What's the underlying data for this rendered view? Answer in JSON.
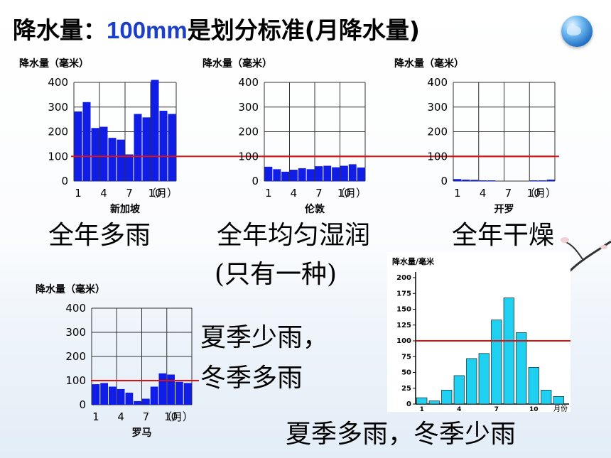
{
  "title": {
    "prefix": "降水量：",
    "highlight": "100mm",
    "suffix": "是划分标准(月降水量)"
  },
  "captions": {
    "singapore": "全年多雨",
    "london": "全年均匀湿润",
    "cairo": "全年干燥",
    "only_one": "(只有一种)",
    "rome_line1": "夏季少雨，",
    "rome_line2": "冬季多雨",
    "last": "夏季多雨，冬季少雨"
  },
  "colors": {
    "bar": "#0f1de6",
    "bar_light": "#1fd0f0",
    "threshold": "#e01010",
    "axis": "#000000"
  },
  "chart_data": [
    {
      "type": "bar",
      "title": "新加坡",
      "ylabel": "降水量（毫米）",
      "xlabel": "（月）",
      "months": [
        1,
        2,
        3,
        4,
        5,
        6,
        7,
        8,
        9,
        10,
        11,
        12
      ],
      "values": [
        282,
        320,
        215,
        220,
        175,
        168,
        108,
        272,
        258,
        410,
        285,
        272
      ],
      "yticks": [
        0,
        100,
        200,
        300,
        400
      ],
      "xticks": [
        "1",
        "4",
        "7",
        "10"
      ],
      "ylim": [
        0,
        400
      ],
      "threshold": 100
    },
    {
      "type": "bar",
      "title": "伦敦",
      "ylabel": "降水量（毫米）",
      "xlabel": "（月）",
      "months": [
        1,
        2,
        3,
        4,
        5,
        6,
        7,
        8,
        9,
        10,
        11,
        12
      ],
      "values": [
        58,
        48,
        38,
        46,
        52,
        48,
        60,
        62,
        56,
        62,
        68,
        55
      ],
      "yticks": [
        0,
        100,
        200,
        300,
        400
      ],
      "xticks": [
        "1",
        "4",
        "7",
        "10"
      ],
      "ylim": [
        0,
        400
      ],
      "threshold": 100
    },
    {
      "type": "bar",
      "title": "开罗",
      "ylabel": "降水量（毫米）",
      "xlabel": "（月）",
      "months": [
        1,
        2,
        3,
        4,
        5,
        6,
        7,
        8,
        9,
        10,
        11,
        12
      ],
      "values": [
        8,
        6,
        5,
        2,
        1,
        0,
        0,
        0,
        0,
        2,
        3,
        6
      ],
      "yticks": [
        0,
        100,
        200,
        300,
        400
      ],
      "xticks": [
        "1",
        "4",
        "7",
        "10"
      ],
      "ylim": [
        0,
        400
      ],
      "threshold": 100
    },
    {
      "type": "bar",
      "title": "罗马",
      "ylabel": "降水量（毫米）",
      "xlabel": "（月）",
      "months": [
        1,
        2,
        3,
        4,
        5,
        6,
        7,
        8,
        9,
        10,
        11,
        12
      ],
      "values": [
        85,
        90,
        75,
        65,
        50,
        15,
        25,
        75,
        130,
        125,
        95,
        90
      ],
      "yticks": [
        0,
        100,
        200,
        300,
        400
      ],
      "xticks": [
        "1",
        "4",
        "7",
        "10"
      ],
      "ylim": [
        0,
        400
      ],
      "threshold": 100
    },
    {
      "type": "bar",
      "title": "",
      "ylabel": "降水量/毫米",
      "xlabel": "月份",
      "months": [
        1,
        2,
        3,
        4,
        5,
        6,
        7,
        8,
        9,
        10,
        11,
        12
      ],
      "values": [
        10,
        5,
        22,
        45,
        72,
        80,
        133,
        168,
        113,
        58,
        22,
        12
      ],
      "yticks": [
        0,
        25,
        50,
        75,
        100,
        125,
        150,
        175,
        200
      ],
      "xticks": [
        "1",
        "4",
        "7",
        "10"
      ],
      "ylim": [
        0,
        200
      ],
      "threshold": 100
    }
  ]
}
